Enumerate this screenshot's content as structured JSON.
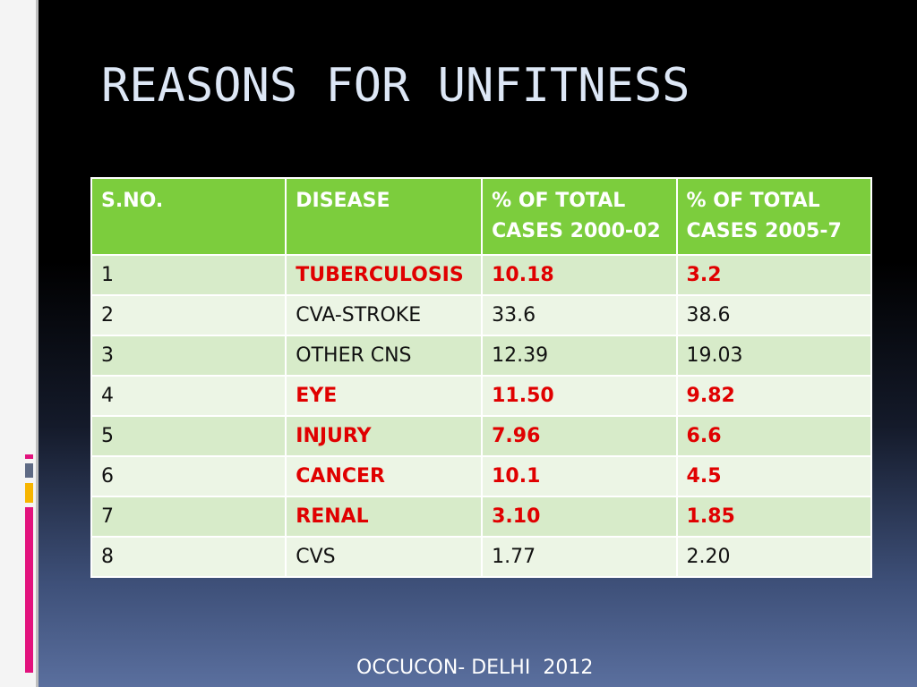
{
  "slide": {
    "title": "REASONS FOR UNFITNESS",
    "footer": "OCCUCON- DELHI  2012",
    "accent_colors": {
      "header_green": "#7ccd3d",
      "highlight_red": "#e00000",
      "deco_pink": "#e2127d",
      "deco_yellow": "#f7b500"
    }
  },
  "table": {
    "headers": [
      "S.NO.",
      "DISEASE",
      "% OF TOTAL CASES 2000-02",
      "% OF TOTAL CASES 2005-7"
    ],
    "rows": [
      {
        "sno": "1",
        "disease": "TUBERCULOSIS",
        "p2000": "10.18",
        "p2005": "3.2",
        "highlight": true
      },
      {
        "sno": "2",
        "disease": "CVA-STROKE",
        "p2000": "33.6",
        "p2005": "38.6",
        "highlight": false
      },
      {
        "sno": "3",
        "disease": "OTHER CNS",
        "p2000": "12.39",
        "p2005": "19.03",
        "highlight": false
      },
      {
        "sno": "4",
        "disease": "EYE",
        "p2000": "11.50",
        "p2005": "9.82",
        "highlight": true
      },
      {
        "sno": "5",
        "disease": "INJURY",
        "p2000": "7.96",
        "p2005": "6.6",
        "highlight": true
      },
      {
        "sno": "6",
        "disease": "CANCER",
        "p2000": "10.1",
        "p2005": "4.5",
        "highlight": true
      },
      {
        "sno": "7",
        "disease": "RENAL",
        "p2000": "3.10",
        "p2005": "1.85",
        "highlight": true
      },
      {
        "sno": "8",
        "disease": "CVS",
        "p2000": "1.77",
        "p2005": "2.20",
        "highlight": false
      }
    ]
  }
}
